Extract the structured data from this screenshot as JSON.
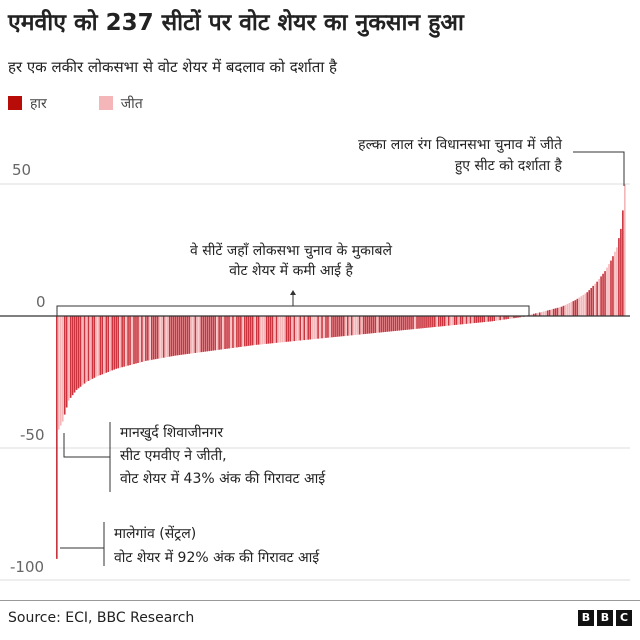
{
  "title": "एमवीए को 237 सीटों पर वोट शेयर का नुकसान हुआ",
  "subtitle": "हर एक लकीर लोकसभा से वोट शेयर में बदलाव को दर्शाता है",
  "legend": [
    {
      "label": "हार",
      "color": "#b80c09"
    },
    {
      "label": "जीत",
      "color": "#f4b6b8"
    }
  ],
  "colors": {
    "loss": "#b80c09",
    "win": "#f4b6b8",
    "bar_loss": "#c9343e",
    "bar_win": "#f4b6b8"
  },
  "annotations": {
    "light_red_line1": "हल्का लाल रंग विधानसभा चुनाव में जीते",
    "light_red_line2": "हुए सीट को दर्शाता है",
    "decline_line1": "वे सीटें जहाँ लोकसभा चुनाव के मुकाबले",
    "decline_line2": "वोट शेयर में कमी आई है",
    "mankhurd_line1": "मानखुर्द शिवाजीनगर",
    "mankhurd_line2": "सीट एमवीए ने जीती,",
    "mankhurd_line3": "वोट शेयर में 43% अंक की गिरावट आई",
    "malegaon_line1": "मालेगांव (सेंट्रल)",
    "malegaon_line2": "वोट शेयर में 92% अंक की गिरावट आई"
  },
  "source": "Source: ECI, BBC Research",
  "logo": "BBC",
  "chart_data": {
    "type": "bar",
    "orientation": "vertical, sorted ascending",
    "ylim": [
      -105,
      60
    ],
    "yticks": [
      50,
      0,
      -50,
      -100
    ],
    "ytick_labels": [
      "50",
      "0",
      "-50",
      "-100"
    ],
    "grid": "horizontal",
    "bar_count": 288,
    "decline_count": 237,
    "min_value": -92,
    "second_value": -43,
    "max_value": 50,
    "value_profile": [
      [
        0,
        -92
      ],
      [
        1,
        -43
      ],
      [
        3,
        -40
      ],
      [
        6,
        -32
      ],
      [
        10,
        -28
      ],
      [
        15,
        -25
      ],
      [
        20,
        -23
      ],
      [
        30,
        -20
      ],
      [
        45,
        -17
      ],
      [
        60,
        -15
      ],
      [
        80,
        -13
      ],
      [
        100,
        -11
      ],
      [
        120,
        -9.5
      ],
      [
        140,
        -8
      ],
      [
        160,
        -6.5
      ],
      [
        180,
        -5
      ],
      [
        200,
        -3.5
      ],
      [
        220,
        -2
      ],
      [
        236,
        -0.3
      ],
      [
        237,
        0.2
      ],
      [
        245,
        1.5
      ],
      [
        255,
        3.5
      ],
      [
        262,
        6
      ],
      [
        268,
        9
      ],
      [
        273,
        13
      ],
      [
        277,
        17
      ],
      [
        280,
        21
      ],
      [
        283,
        26
      ],
      [
        285,
        33
      ],
      [
        286,
        40
      ],
      [
        287,
        50
      ]
    ],
    "highlighted_indices": [
      1,
      287
    ]
  }
}
